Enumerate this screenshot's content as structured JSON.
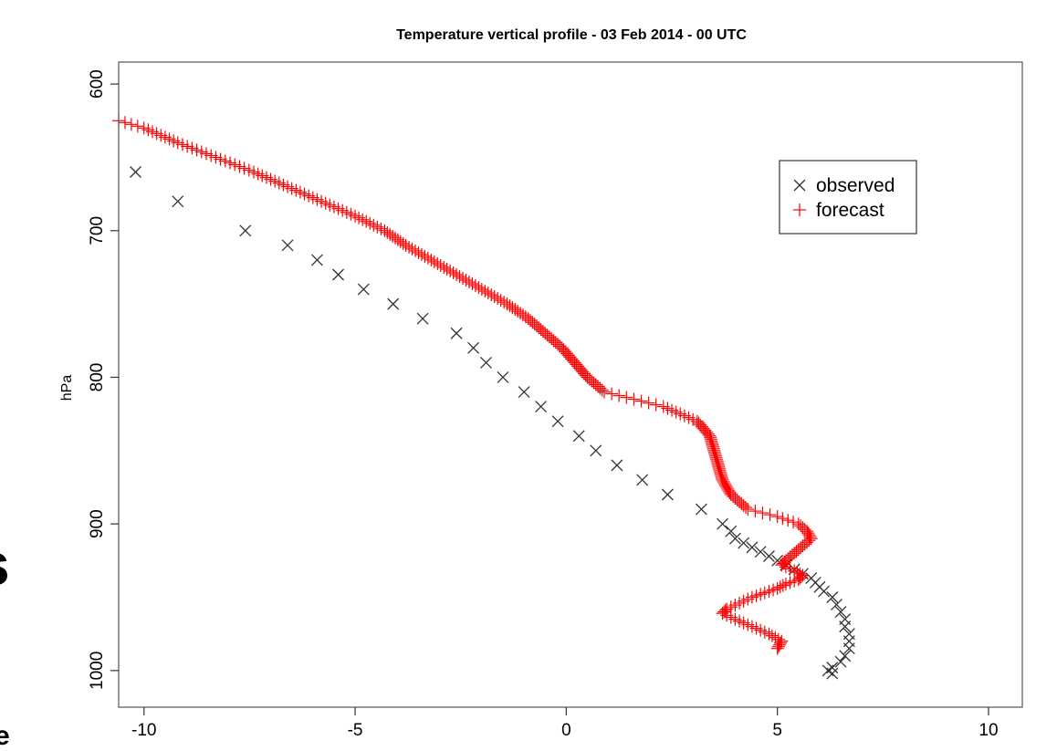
{
  "chart_data": {
    "type": "scatter",
    "title": "Temperature vertical profile - 03 Feb 2014 - 00 UTC",
    "xlabel": "",
    "ylabel": "hPa",
    "xlim": [
      -10.6,
      10.8
    ],
    "ylim": [
      1025,
      585
    ],
    "y_inverted": true,
    "grid": false,
    "legend_position": "top-right",
    "xticks": [
      -10,
      -5,
      0,
      5,
      10
    ],
    "xtick_labels": [
      "-10",
      "-5",
      "0",
      "5",
      "10"
    ],
    "yticks": [
      600,
      700,
      800,
      900,
      1000
    ],
    "ytick_labels": [
      "600",
      "700",
      "800",
      "900",
      "1000"
    ],
    "series": [
      {
        "name": "observed",
        "marker": "x",
        "color": "#333333",
        "points": [
          [
            -10.2,
            660
          ],
          [
            -9.2,
            680
          ],
          [
            -7.6,
            700
          ],
          [
            -6.6,
            710
          ],
          [
            -5.9,
            720
          ],
          [
            -5.4,
            730
          ],
          [
            -4.8,
            740
          ],
          [
            -4.1,
            750
          ],
          [
            -3.4,
            760
          ],
          [
            -2.6,
            770
          ],
          [
            -2.2,
            780
          ],
          [
            -1.9,
            790
          ],
          [
            -1.5,
            800
          ],
          [
            -1.0,
            810
          ],
          [
            -0.6,
            820
          ],
          [
            -0.2,
            830
          ],
          [
            0.3,
            840
          ],
          [
            0.7,
            850
          ],
          [
            1.2,
            860
          ],
          [
            1.8,
            870
          ],
          [
            2.4,
            880
          ],
          [
            3.2,
            890
          ],
          [
            3.7,
            900
          ],
          [
            3.9,
            905
          ],
          [
            4.0,
            910
          ],
          [
            4.2,
            913
          ],
          [
            4.4,
            916
          ],
          [
            4.6,
            919
          ],
          [
            4.8,
            922
          ],
          [
            5.0,
            925
          ],
          [
            5.2,
            928
          ],
          [
            5.4,
            931
          ],
          [
            5.6,
            934
          ],
          [
            5.8,
            937
          ],
          [
            5.9,
            940
          ],
          [
            6.0,
            943
          ],
          [
            6.1,
            946
          ],
          [
            6.3,
            950
          ],
          [
            6.4,
            955
          ],
          [
            6.5,
            960
          ],
          [
            6.6,
            965
          ],
          [
            6.6,
            970
          ],
          [
            6.7,
            975
          ],
          [
            6.7,
            980
          ],
          [
            6.7,
            985
          ],
          [
            6.6,
            990
          ],
          [
            6.5,
            994
          ],
          [
            6.3,
            998
          ],
          [
            6.2,
            1000
          ],
          [
            6.3,
            1002
          ]
        ]
      },
      {
        "name": "forecast",
        "marker": "+",
        "color": "#ff0000",
        "profile": [
          [
            -10.6,
            625
          ],
          [
            -10.0,
            630
          ],
          [
            -9.2,
            640
          ],
          [
            -8.3,
            650
          ],
          [
            -7.4,
            660
          ],
          [
            -6.6,
            670
          ],
          [
            -5.8,
            680
          ],
          [
            -5.0,
            690
          ],
          [
            -4.3,
            700
          ],
          [
            -3.8,
            710
          ],
          [
            -3.2,
            720
          ],
          [
            -2.6,
            730
          ],
          [
            -2.0,
            740
          ],
          [
            -1.4,
            750
          ],
          [
            -0.9,
            760
          ],
          [
            -0.5,
            770
          ],
          [
            -0.1,
            780
          ],
          [
            0.2,
            790
          ],
          [
            0.5,
            800
          ],
          [
            0.9,
            810
          ],
          [
            1.6,
            815
          ],
          [
            2.3,
            820
          ],
          [
            2.7,
            825
          ],
          [
            3.1,
            830
          ],
          [
            3.4,
            840
          ],
          [
            3.5,
            850
          ],
          [
            3.6,
            860
          ],
          [
            3.7,
            870
          ],
          [
            3.9,
            880
          ],
          [
            4.3,
            890
          ],
          [
            5.0,
            895
          ],
          [
            5.5,
            900
          ],
          [
            5.7,
            905
          ],
          [
            5.8,
            910
          ],
          [
            5.6,
            915
          ],
          [
            5.4,
            920
          ],
          [
            5.2,
            925
          ],
          [
            5.1,
            928
          ],
          [
            5.4,
            932
          ],
          [
            5.6,
            935
          ],
          [
            5.5,
            938
          ],
          [
            5.2,
            941
          ],
          [
            5.0,
            944
          ],
          [
            4.7,
            947
          ],
          [
            4.4,
            950
          ],
          [
            4.1,
            954
          ],
          [
            3.8,
            958
          ],
          [
            3.7,
            961
          ],
          [
            4.0,
            965
          ],
          [
            4.4,
            970
          ],
          [
            4.8,
            975
          ],
          [
            5.1,
            980
          ],
          [
            5.0,
            985
          ]
        ]
      }
    ]
  }
}
